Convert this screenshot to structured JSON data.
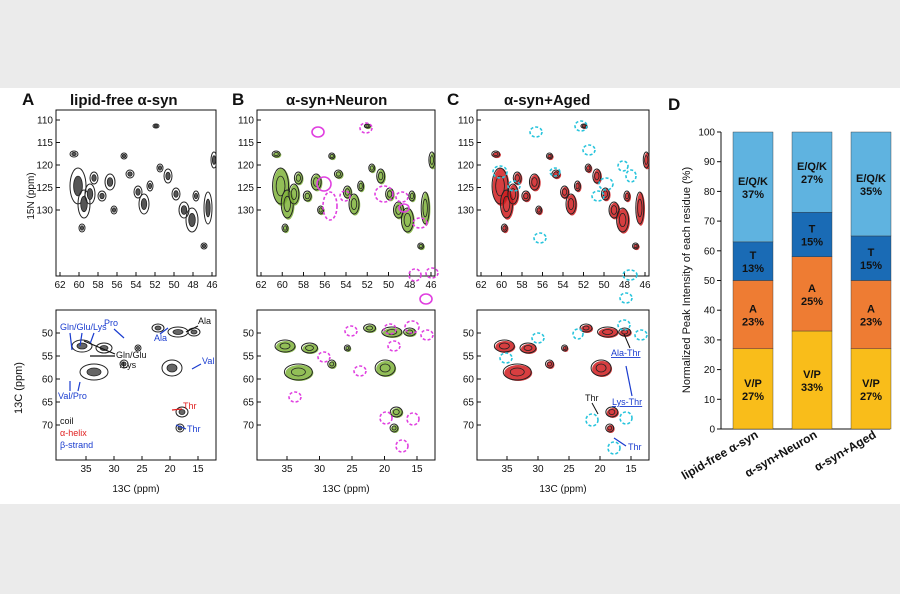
{
  "colors": {
    "background": "#ebebeb",
    "figure_bg": "#ffffff",
    "free_contour": "#3a3a3a",
    "neuron_contour": "#7fb33a",
    "aged_contour": "#d01c1f",
    "magenta_circle": "#e040e0",
    "cyan_circle": "#27c4dc",
    "coil": "#111111",
    "alpha_helix": "#e02020",
    "beta_strand": "#1a3ccf",
    "seg_vp": "#f9bd1a",
    "seg_a": "#ee7c33",
    "seg_t": "#1a6bb5",
    "seg_eqk": "#5fb3e0"
  },
  "panels": [
    {
      "letter": "A",
      "title": "lipid-free α-syn",
      "contour_color": "#3a3a3a"
    },
    {
      "letter": "B",
      "title": "α-syn+Neuron",
      "contour_color": "#7fb33a"
    },
    {
      "letter": "C",
      "title": "α-syn+Aged",
      "contour_color": "#d01c1f"
    },
    {
      "letter": "D",
      "title": ""
    }
  ],
  "spectra": {
    "top_yaxis_label": "15N (ppm)",
    "top_yticks": [
      "110",
      "115",
      "120",
      "125",
      "130"
    ],
    "top_xticks": [
      "62",
      "60",
      "58",
      "56",
      "54",
      "52",
      "50",
      "48",
      "46"
    ],
    "bottom_yaxis_label": "13C (ppm)",
    "bottom_yticks": [
      "50",
      "55",
      "60",
      "65",
      "70"
    ],
    "bottom_xticks": [
      "35",
      "30",
      "25",
      "20",
      "15"
    ],
    "bottom_xaxis_label": "13C (ppm)"
  },
  "annotations_a": {
    "pro": "Pro",
    "ala_black": "Ala",
    "gln_glu_lys": "Gln/Glu/Lys",
    "ala_blue": "Ala",
    "gln_glu": "Gln/Glu",
    "lys": "/Lys",
    "val": "Val",
    "val_pro": "Val/Pro",
    "thr_red": "Thr",
    "thr_blue": "Thr",
    "legend_coil": "coil",
    "legend_helix": "α-helix",
    "legend_strand": "β-strand"
  },
  "annotations_c": {
    "ala_thr": "Ala-Thr",
    "lys_thr": "Lys-Thr",
    "thr_black": "Thr",
    "thr_blue": "Thr"
  },
  "chart_data": {
    "type": "bar",
    "stacked": true,
    "categories": [
      "lipid-free α-syn",
      "α-syn+Neuron",
      "α-syn+Aged"
    ],
    "series": [
      {
        "name": "V/P",
        "values": [
          27,
          33,
          27
        ],
        "labels": [
          "V/P\n27%",
          "V/P\n33%",
          "V/P\n27%"
        ],
        "color": "#f9bd1a"
      },
      {
        "name": "A",
        "values": [
          23,
          25,
          23
        ],
        "labels": [
          "A\n23%",
          "A\n25%",
          "A\n23%"
        ],
        "color": "#ee7c33"
      },
      {
        "name": "T",
        "values": [
          13,
          15,
          15
        ],
        "labels": [
          "T\n13%",
          "T\n15%",
          "T\n15%"
        ],
        "color": "#1a6bb5"
      },
      {
        "name": "E/Q/K",
        "values": [
          37,
          27,
          35
        ],
        "labels": [
          "E/Q/K\n37%",
          "E/Q/K\n27%",
          "E/Q/K\n35%"
        ],
        "color": "#5fb3e0"
      }
    ],
    "ylabel": "Normalized Peak Intensity of each residue (%)",
    "xlabel": "",
    "ylim": [
      0,
      100
    ],
    "yticks": [
      "0",
      "10",
      "20",
      "30",
      "40",
      "50",
      "60",
      "70",
      "80",
      "90",
      "100"
    ],
    "grid": false,
    "legend": "none"
  }
}
